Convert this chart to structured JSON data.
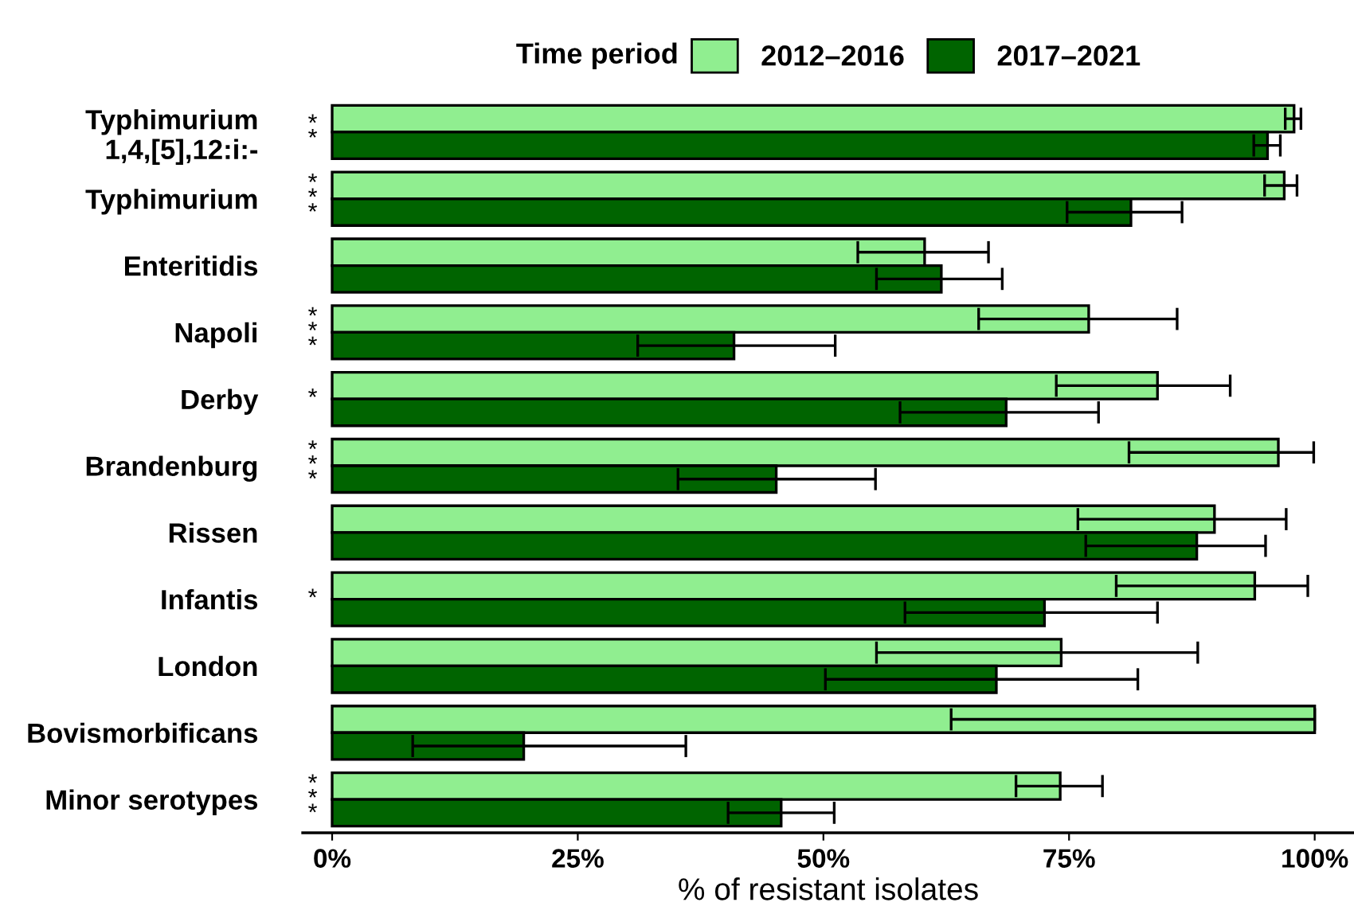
{
  "chart_data": {
    "type": "bar",
    "orientation": "horizontal",
    "xlabel": "% of resistant isolates",
    "legend_title": "Time period",
    "legend": "top",
    "categories": [
      "Typhimurium\n1,4,[5],12:i:-",
      "Typhimurium",
      "Enteritidis",
      "Napoli",
      "Derby",
      "Brandenburg",
      "Rissen",
      "Infantis",
      "London",
      "Bovismorbificans",
      "Minor serotypes"
    ],
    "series": [
      {
        "name": "2012–2016",
        "color": "#90ee90",
        "values": [
          97.9,
          96.9,
          60.3,
          77.0,
          84.0,
          96.3,
          89.8,
          93.9,
          74.2,
          100,
          74.1
        ],
        "errors": [
          [
            97.0,
            98.6
          ],
          [
            94.9,
            98.2
          ],
          [
            53.5,
            66.8
          ],
          [
            65.8,
            86.0
          ],
          [
            73.7,
            91.4
          ],
          [
            81.1,
            99.9
          ],
          [
            75.9,
            97.1
          ],
          [
            79.8,
            99.3
          ],
          [
            55.4,
            88.1
          ],
          [
            63.0,
            100
          ],
          [
            69.6,
            78.4
          ]
        ]
      },
      {
        "name": "2017–2021",
        "color": "#006400",
        "values": [
          95.2,
          81.3,
          62.0,
          40.9,
          68.6,
          45.2,
          88.0,
          72.5,
          67.6,
          19.5,
          45.7
        ],
        "errors": [
          [
            93.8,
            96.5
          ],
          [
            74.8,
            86.5
          ],
          [
            55.4,
            68.2
          ],
          [
            31.1,
            51.2
          ],
          [
            57.8,
            78.0
          ],
          [
            35.2,
            55.3
          ],
          [
            76.7,
            95.0
          ],
          [
            58.3,
            84.0
          ],
          [
            50.2,
            82.0
          ],
          [
            8.2,
            36.0
          ],
          [
            40.3,
            51.1
          ]
        ]
      }
    ],
    "xlim": [
      -3,
      104
    ],
    "xticks": [
      {
        "value": 0,
        "label": "0%"
      },
      {
        "value": 25,
        "label": "25%"
      },
      {
        "value": 50,
        "label": "50%"
      },
      {
        "value": 75,
        "label": "75%"
      },
      {
        "value": 100,
        "label": "100%"
      }
    ],
    "grid": false,
    "annotations": [
      "**",
      "***",
      null,
      "***",
      "*",
      "***",
      null,
      "*",
      null,
      null,
      "***"
    ]
  }
}
